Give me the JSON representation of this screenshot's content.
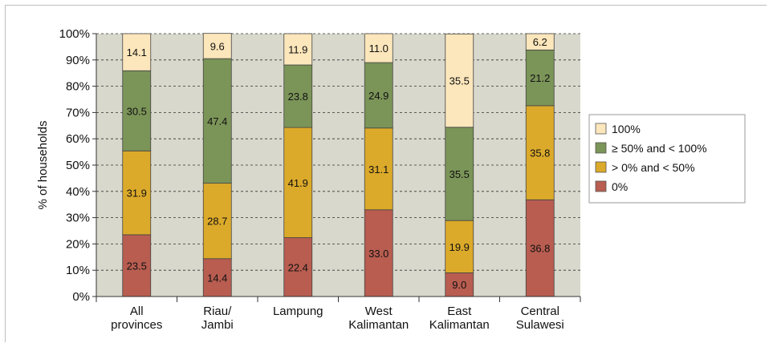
{
  "chart_data": {
    "type": "bar",
    "stacked": true,
    "ylabel": "% of households",
    "yticks": [
      "0%",
      "10%",
      "20%",
      "30%",
      "40%",
      "50%",
      "60%",
      "70%",
      "80%",
      "90%",
      "100%"
    ],
    "ylim": [
      0,
      100
    ],
    "grid": "horizontal dashed",
    "legend_position": "right",
    "categories": [
      [
        "All",
        "provinces"
      ],
      [
        "Riau/",
        "Jambi"
      ],
      [
        "Lampung"
      ],
      [
        "West",
        "Kalimantan"
      ],
      [
        "East",
        "Kalimantan"
      ],
      [
        "Central",
        "Sulawesi"
      ]
    ],
    "series": [
      {
        "name": "0%",
        "color": "#b85d50",
        "values": [
          23.5,
          14.4,
          22.4,
          33.0,
          9.0,
          36.8
        ],
        "labels": [
          "23.5",
          "14.4",
          "22.4",
          "33.0",
          "9.0",
          "36.8"
        ]
      },
      {
        "name": "> 0% and < 50%",
        "color": "#dcaa2a",
        "values": [
          31.9,
          28.7,
          41.9,
          31.1,
          19.9,
          35.8
        ],
        "labels": [
          "31.9",
          "28.7",
          "41.9",
          "31.1",
          "19.9",
          "35.8"
        ]
      },
      {
        "name": "≥ 50% and < 100%",
        "color": "#7b9458",
        "values": [
          30.5,
          47.4,
          23.8,
          24.9,
          35.5,
          21.2
        ],
        "labels": [
          "30.5",
          "47.4",
          "23.8",
          "24.9",
          "35.5",
          "21.2"
        ]
      },
      {
        "name": "100%",
        "color": "#fce6bb",
        "values": [
          14.1,
          9.6,
          11.9,
          11.0,
          35.5,
          6.2
        ],
        "labels": [
          "14.1",
          "9.6",
          "11.9",
          "11.0",
          "35.5",
          "6.2"
        ]
      }
    ],
    "legend_order": [
      3,
      2,
      1,
      0
    ]
  }
}
